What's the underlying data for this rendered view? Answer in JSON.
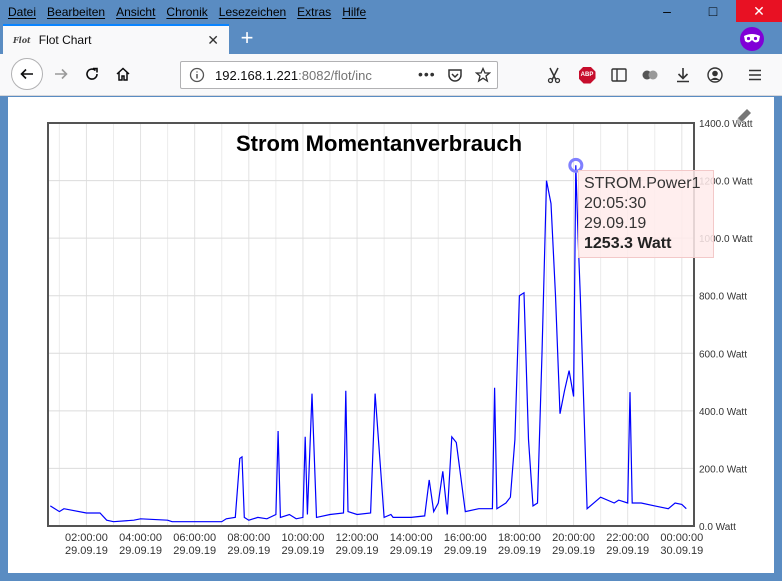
{
  "menubar": {
    "items": [
      "Datei",
      "Bearbeiten",
      "Ansicht",
      "Chronik",
      "Lesezeichen",
      "Extras",
      "Hilfe"
    ]
  },
  "window_controls": {
    "minimize": "–",
    "maximize": "□",
    "close": "✕"
  },
  "tab": {
    "icon_text": "Flot",
    "title": "Flot Chart",
    "close": "✕"
  },
  "newtab": "+",
  "urlbar": {
    "host": "192.168.1.221",
    "rest": ":8082/flot/inc",
    "more": "•••"
  },
  "chart_data": {
    "type": "line",
    "title": "Strom Momentanverbrauch",
    "series": [
      {
        "name": "STROM.Power1",
        "color": "#0000ff",
        "x": [
          "00:40",
          "01:00",
          "01:10",
          "02:00",
          "02:30",
          "02:45",
          "03:00",
          "03:45",
          "04:00",
          "05:00",
          "05:10",
          "05:30",
          "06:00",
          "06:30",
          "07:00",
          "07:10",
          "07:30",
          "07:40",
          "07:45",
          "07:50",
          "08:00",
          "08:20",
          "08:40",
          "09:00",
          "09:05",
          "09:10",
          "09:30",
          "09:45",
          "10:00",
          "10:05",
          "10:10",
          "10:20",
          "10:30",
          "11:00",
          "11:30",
          "11:35",
          "11:40",
          "12:00",
          "12:30",
          "12:40",
          "13:00",
          "13:15",
          "13:20",
          "13:30",
          "14:00",
          "14:30",
          "14:40",
          "14:50",
          "15:00",
          "15:10",
          "15:20",
          "15:30",
          "15:40",
          "16:00",
          "16:30",
          "17:00",
          "17:05",
          "17:10",
          "17:30",
          "17:40",
          "17:50",
          "18:00",
          "18:10",
          "18:20",
          "18:30",
          "18:40",
          "18:50",
          "19:00",
          "19:10",
          "19:20",
          "19:30",
          "19:40",
          "19:50",
          "20:00",
          "20:05",
          "20:10",
          "20:15",
          "20:30",
          "21:00",
          "21:30",
          "21:40",
          "22:00",
          "22:05",
          "22:10",
          "22:30",
          "23:00",
          "23:30",
          "23:45",
          "00:00",
          "00:10"
        ],
        "y": [
          70,
          50,
          60,
          45,
          45,
          20,
          15,
          20,
          25,
          20,
          15,
          15,
          15,
          15,
          15,
          25,
          30,
          235,
          240,
          30,
          20,
          30,
          25,
          40,
          330,
          30,
          40,
          25,
          30,
          310,
          40,
          460,
          30,
          40,
          45,
          470,
          50,
          40,
          45,
          460,
          30,
          40,
          30,
          30,
          30,
          35,
          160,
          50,
          80,
          190,
          40,
          310,
          290,
          50,
          60,
          60,
          480,
          60,
          80,
          100,
          300,
          800,
          810,
          300,
          70,
          80,
          600,
          1200,
          1120,
          800,
          390,
          470,
          540,
          450,
          1253,
          1000,
          800,
          60,
          100,
          80,
          90,
          80,
          465,
          80,
          80,
          70,
          60,
          80,
          75,
          60
        ]
      }
    ],
    "xticks": [
      {
        "label": "02:00:00",
        "date": "29.09.19"
      },
      {
        "label": "04:00:00",
        "date": "29.09.19"
      },
      {
        "label": "06:00:00",
        "date": "29.09.19"
      },
      {
        "label": "08:00:00",
        "date": "29.09.19"
      },
      {
        "label": "10:00:00",
        "date": "29.09.19"
      },
      {
        "label": "12:00:00",
        "date": "29.09.19"
      },
      {
        "label": "14:00:00",
        "date": "29.09.19"
      },
      {
        "label": "16:00:00",
        "date": "29.09.19"
      },
      {
        "label": "18:00:00",
        "date": "29.09.19"
      },
      {
        "label": "20:00:00",
        "date": "29.09.19"
      },
      {
        "label": "22:00:00",
        "date": "29.09.19"
      },
      {
        "label": "00:00:00",
        "date": "30.09.19"
      }
    ],
    "yticks": [
      "0.0 Watt",
      "200.0 Watt",
      "400.0 Watt",
      "600.0 Watt",
      "800.0 Watt",
      "1000.0 Watt",
      "1200.0 Watt",
      "1400.0 Watt"
    ],
    "ylim": [
      0,
      1400
    ],
    "grid": true,
    "tooltip": {
      "series": "STROM.Power1",
      "time": "20:05:30 29.09.19",
      "value": "1253.3 Watt"
    }
  }
}
